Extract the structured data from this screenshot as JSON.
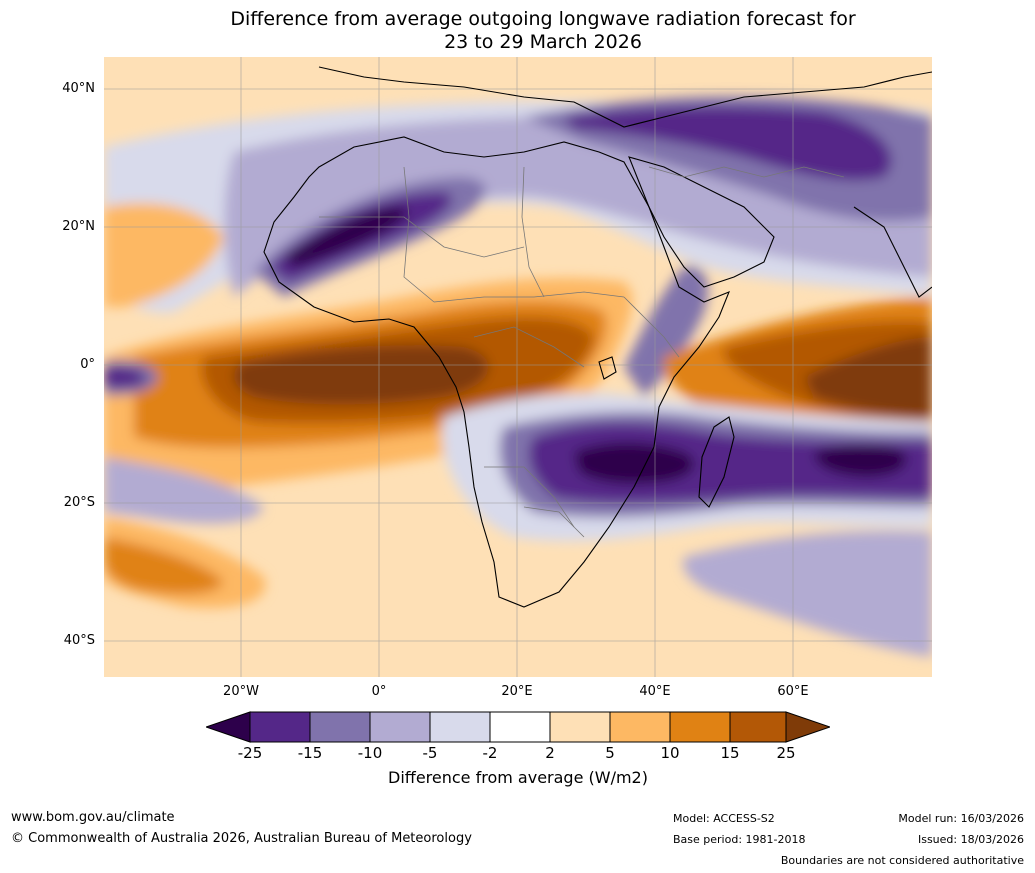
{
  "title": {
    "line1": "Difference from average outgoing longwave radiation forecast for",
    "line2": "23 to 29 March 2026"
  },
  "map": {
    "lat_labels": [
      "40°N",
      "20°N",
      "0°",
      "20°S",
      "40°S"
    ],
    "lon_labels": [
      "20°W",
      "0°",
      "20°E",
      "40°E",
      "60°E"
    ],
    "legend_colors": {
      "lt_-25": "#2d004b",
      "-25_-15": "#542788",
      "-15_-10": "#8073ac",
      "-10_-5": "#b2abd2",
      "-5_-2": "#d8daeb",
      "-2_2": "#ffffff",
      "2_5": "#fee0b6",
      "5_10": "#fdb863",
      "10_15": "#e08214",
      "15_25": "#b35806",
      "gt_25": "#7f3b08"
    }
  },
  "colorbar": {
    "ticks": [
      "-25",
      "-15",
      "-10",
      "-5",
      "-2",
      "2",
      "5",
      "10",
      "15",
      "25"
    ],
    "label": "Difference from average (W/m2)"
  },
  "footer": {
    "website": "www.bom.gov.au/climate",
    "copyright": "© Commonwealth of Australia 2026, Australian Bureau of Meteorology",
    "model": "Model: ACCESS-S2",
    "base_period": "Base period: 1981-2018",
    "model_run": "Model run: 16/03/2026",
    "issued": "Issued: 18/03/2026",
    "disclaimer": "Boundaries are not considered authoritative"
  }
}
